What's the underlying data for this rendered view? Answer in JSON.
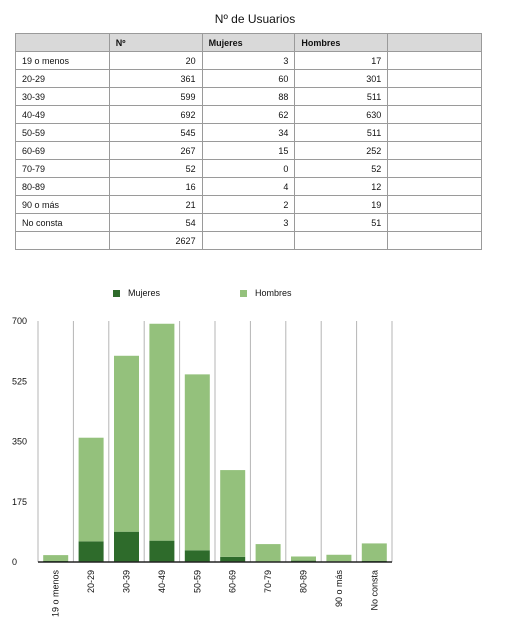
{
  "title": "Nº de Usuarios",
  "table": {
    "headers": [
      "",
      "Nº",
      "Mujeres",
      "Hombres",
      ""
    ],
    "rows": [
      [
        "19  o menos",
        "20",
        "3",
        "17"
      ],
      [
        "20-29",
        "361",
        "60",
        "301"
      ],
      [
        "30-39",
        "599",
        "88",
        "511"
      ],
      [
        "40-49",
        "692",
        "62",
        "630"
      ],
      [
        "50-59",
        "545",
        "34",
        "511"
      ],
      [
        "60-69",
        "267",
        "15",
        "252"
      ],
      [
        "70-79",
        "52",
        "0",
        "52"
      ],
      [
        "80-89",
        "16",
        "4",
        "12"
      ],
      [
        "90 o más",
        "21",
        "2",
        "19"
      ],
      [
        "No consta",
        "54",
        "3",
        "51"
      ]
    ],
    "total": "2627"
  },
  "chart_data": {
    "type": "bar",
    "stacked": true,
    "categories": [
      "19  o menos",
      "20-29",
      "30-39",
      "40-49",
      "50-59",
      "60-69",
      "70-79",
      "80-89",
      "90 o más",
      "No consta"
    ],
    "series": [
      {
        "name": "Mujeres",
        "values": [
          3,
          60,
          88,
          62,
          34,
          15,
          0,
          4,
          2,
          3
        ],
        "color": "#2e6b2b"
      },
      {
        "name": "Hombres",
        "values": [
          17,
          301,
          511,
          630,
          511,
          252,
          52,
          12,
          19,
          51
        ],
        "color": "#94c17c"
      }
    ],
    "ylim": [
      0,
      700
    ],
    "yticks": [
      0,
      175,
      350,
      525,
      700
    ],
    "grid": "vertical",
    "legend_position": "top"
  }
}
